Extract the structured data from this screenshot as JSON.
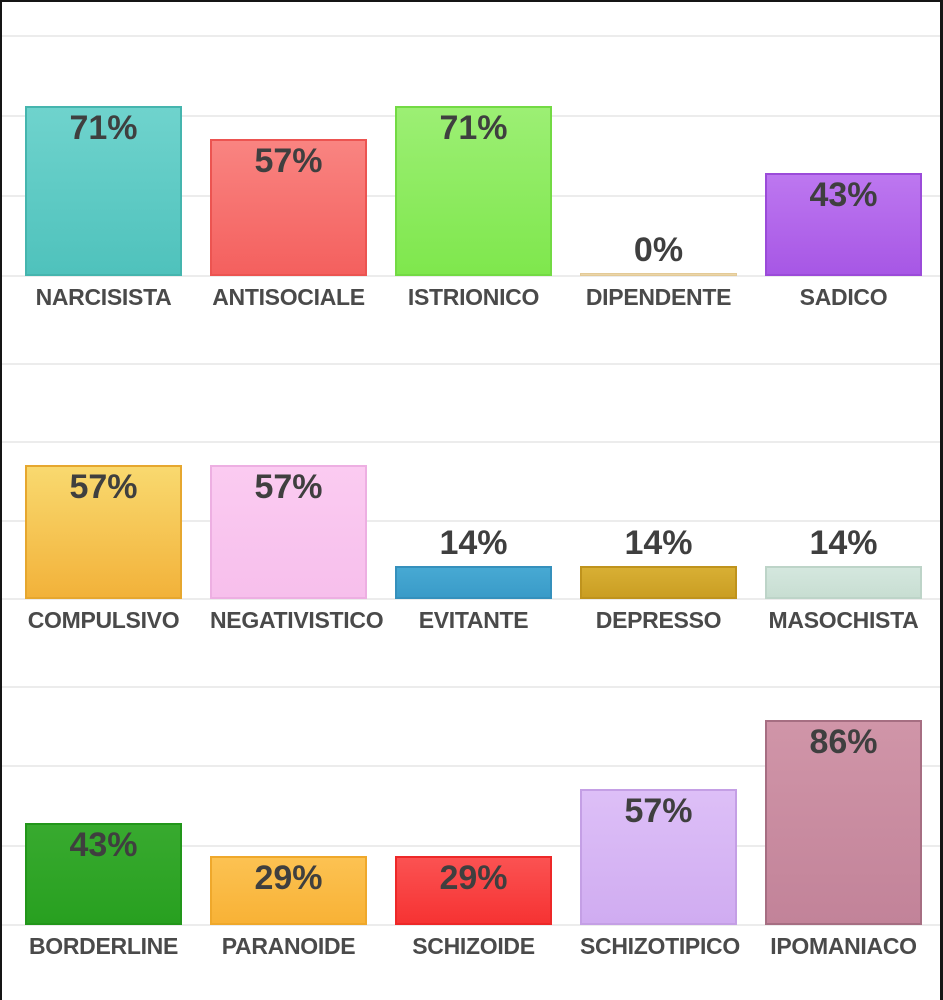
{
  "page": {
    "background": "#ffffff",
    "frame_color": "#151515",
    "gridline_color": "#ececec",
    "value_label_color": "#3f3f3f",
    "category_label_color": "#4a4a4a"
  },
  "chart_data": [
    {
      "type": "bar",
      "title": "",
      "xlabel": "",
      "ylabel": "",
      "ylim": [
        0,
        100
      ],
      "grid": true,
      "legend": "none",
      "categories": [
        "NARCISISTA",
        "ANTISOCIALE",
        "ISTRIONICO",
        "DIPENDENTE",
        "SADICO"
      ],
      "values": [
        71,
        57,
        71,
        0,
        43
      ],
      "value_labels": [
        "71%",
        "57%",
        "71%",
        "0%",
        "43%"
      ],
      "bar_colors": [
        {
          "fill_top": "#6fd3cd",
          "fill_bottom": "#4fc2bc",
          "border": "#45b5ae"
        },
        {
          "fill_top": "#f98481",
          "fill_bottom": "#f4605e",
          "border": "#ec5451"
        },
        {
          "fill_top": "#9cef74",
          "fill_bottom": "#7fe74d",
          "border": "#73da44"
        },
        {
          "fill_top": "#eed9ae",
          "fill_bottom": "#e8d1a2",
          "border": "#e3ca97"
        },
        {
          "fill_top": "#bd77f0",
          "fill_bottom": "#a757e5",
          "border": "#9b4bd9"
        }
      ]
    },
    {
      "type": "bar",
      "title": "",
      "xlabel": "",
      "ylabel": "",
      "ylim": [
        0,
        100
      ],
      "grid": true,
      "legend": "none",
      "categories": [
        "COMPULSIVO",
        "NEGATIVISTICO",
        "EVITANTE",
        "DEPRESSO",
        "MASOCHISTA"
      ],
      "values": [
        57,
        57,
        14,
        14,
        14
      ],
      "value_labels": [
        "57%",
        "57%",
        "14%",
        "14%",
        "14%"
      ],
      "bar_colors": [
        {
          "fill_top": "#f9d96f",
          "fill_bottom": "#f2b23a",
          "border": "#e6a72f"
        },
        {
          "fill_top": "#fbcbf1",
          "fill_bottom": "#f7bfec",
          "border": "#edafe2"
        },
        {
          "fill_top": "#47a9d3",
          "fill_bottom": "#3a9bc8",
          "border": "#3590bc"
        },
        {
          "fill_top": "#d8af34",
          "fill_bottom": "#ca9e23",
          "border": "#bf931d"
        },
        {
          "fill_top": "#d4e7de",
          "fill_bottom": "#c8ded2",
          "border": "#bdd4c8"
        }
      ]
    },
    {
      "type": "bar",
      "title": "",
      "xlabel": "",
      "ylabel": "",
      "ylim": [
        0,
        100
      ],
      "grid": true,
      "legend": "none",
      "categories": [
        "BORDERLINE",
        "PARANOIDE",
        "SCHIZOIDE",
        "SCHIZOTIPICO",
        "IPOMANIACO"
      ],
      "values": [
        43,
        29,
        29,
        57,
        86
      ],
      "value_labels": [
        "43%",
        "29%",
        "29%",
        "57%",
        "86%"
      ],
      "bar_colors": [
        {
          "fill_top": "#38aa2f",
          "fill_bottom": "#28a020",
          "border": "#22961a"
        },
        {
          "fill_top": "#fcc252",
          "fill_bottom": "#f8b236",
          "border": "#efa82b"
        },
        {
          "fill_top": "#fb5252",
          "fill_bottom": "#f63333",
          "border": "#ed2828"
        },
        {
          "fill_top": "#ddbff7",
          "fill_bottom": "#d0acf1",
          "border": "#c49fe5"
        },
        {
          "fill_top": "#d095a8",
          "fill_bottom": "#c28399",
          "border": "#a66e82"
        }
      ]
    }
  ]
}
